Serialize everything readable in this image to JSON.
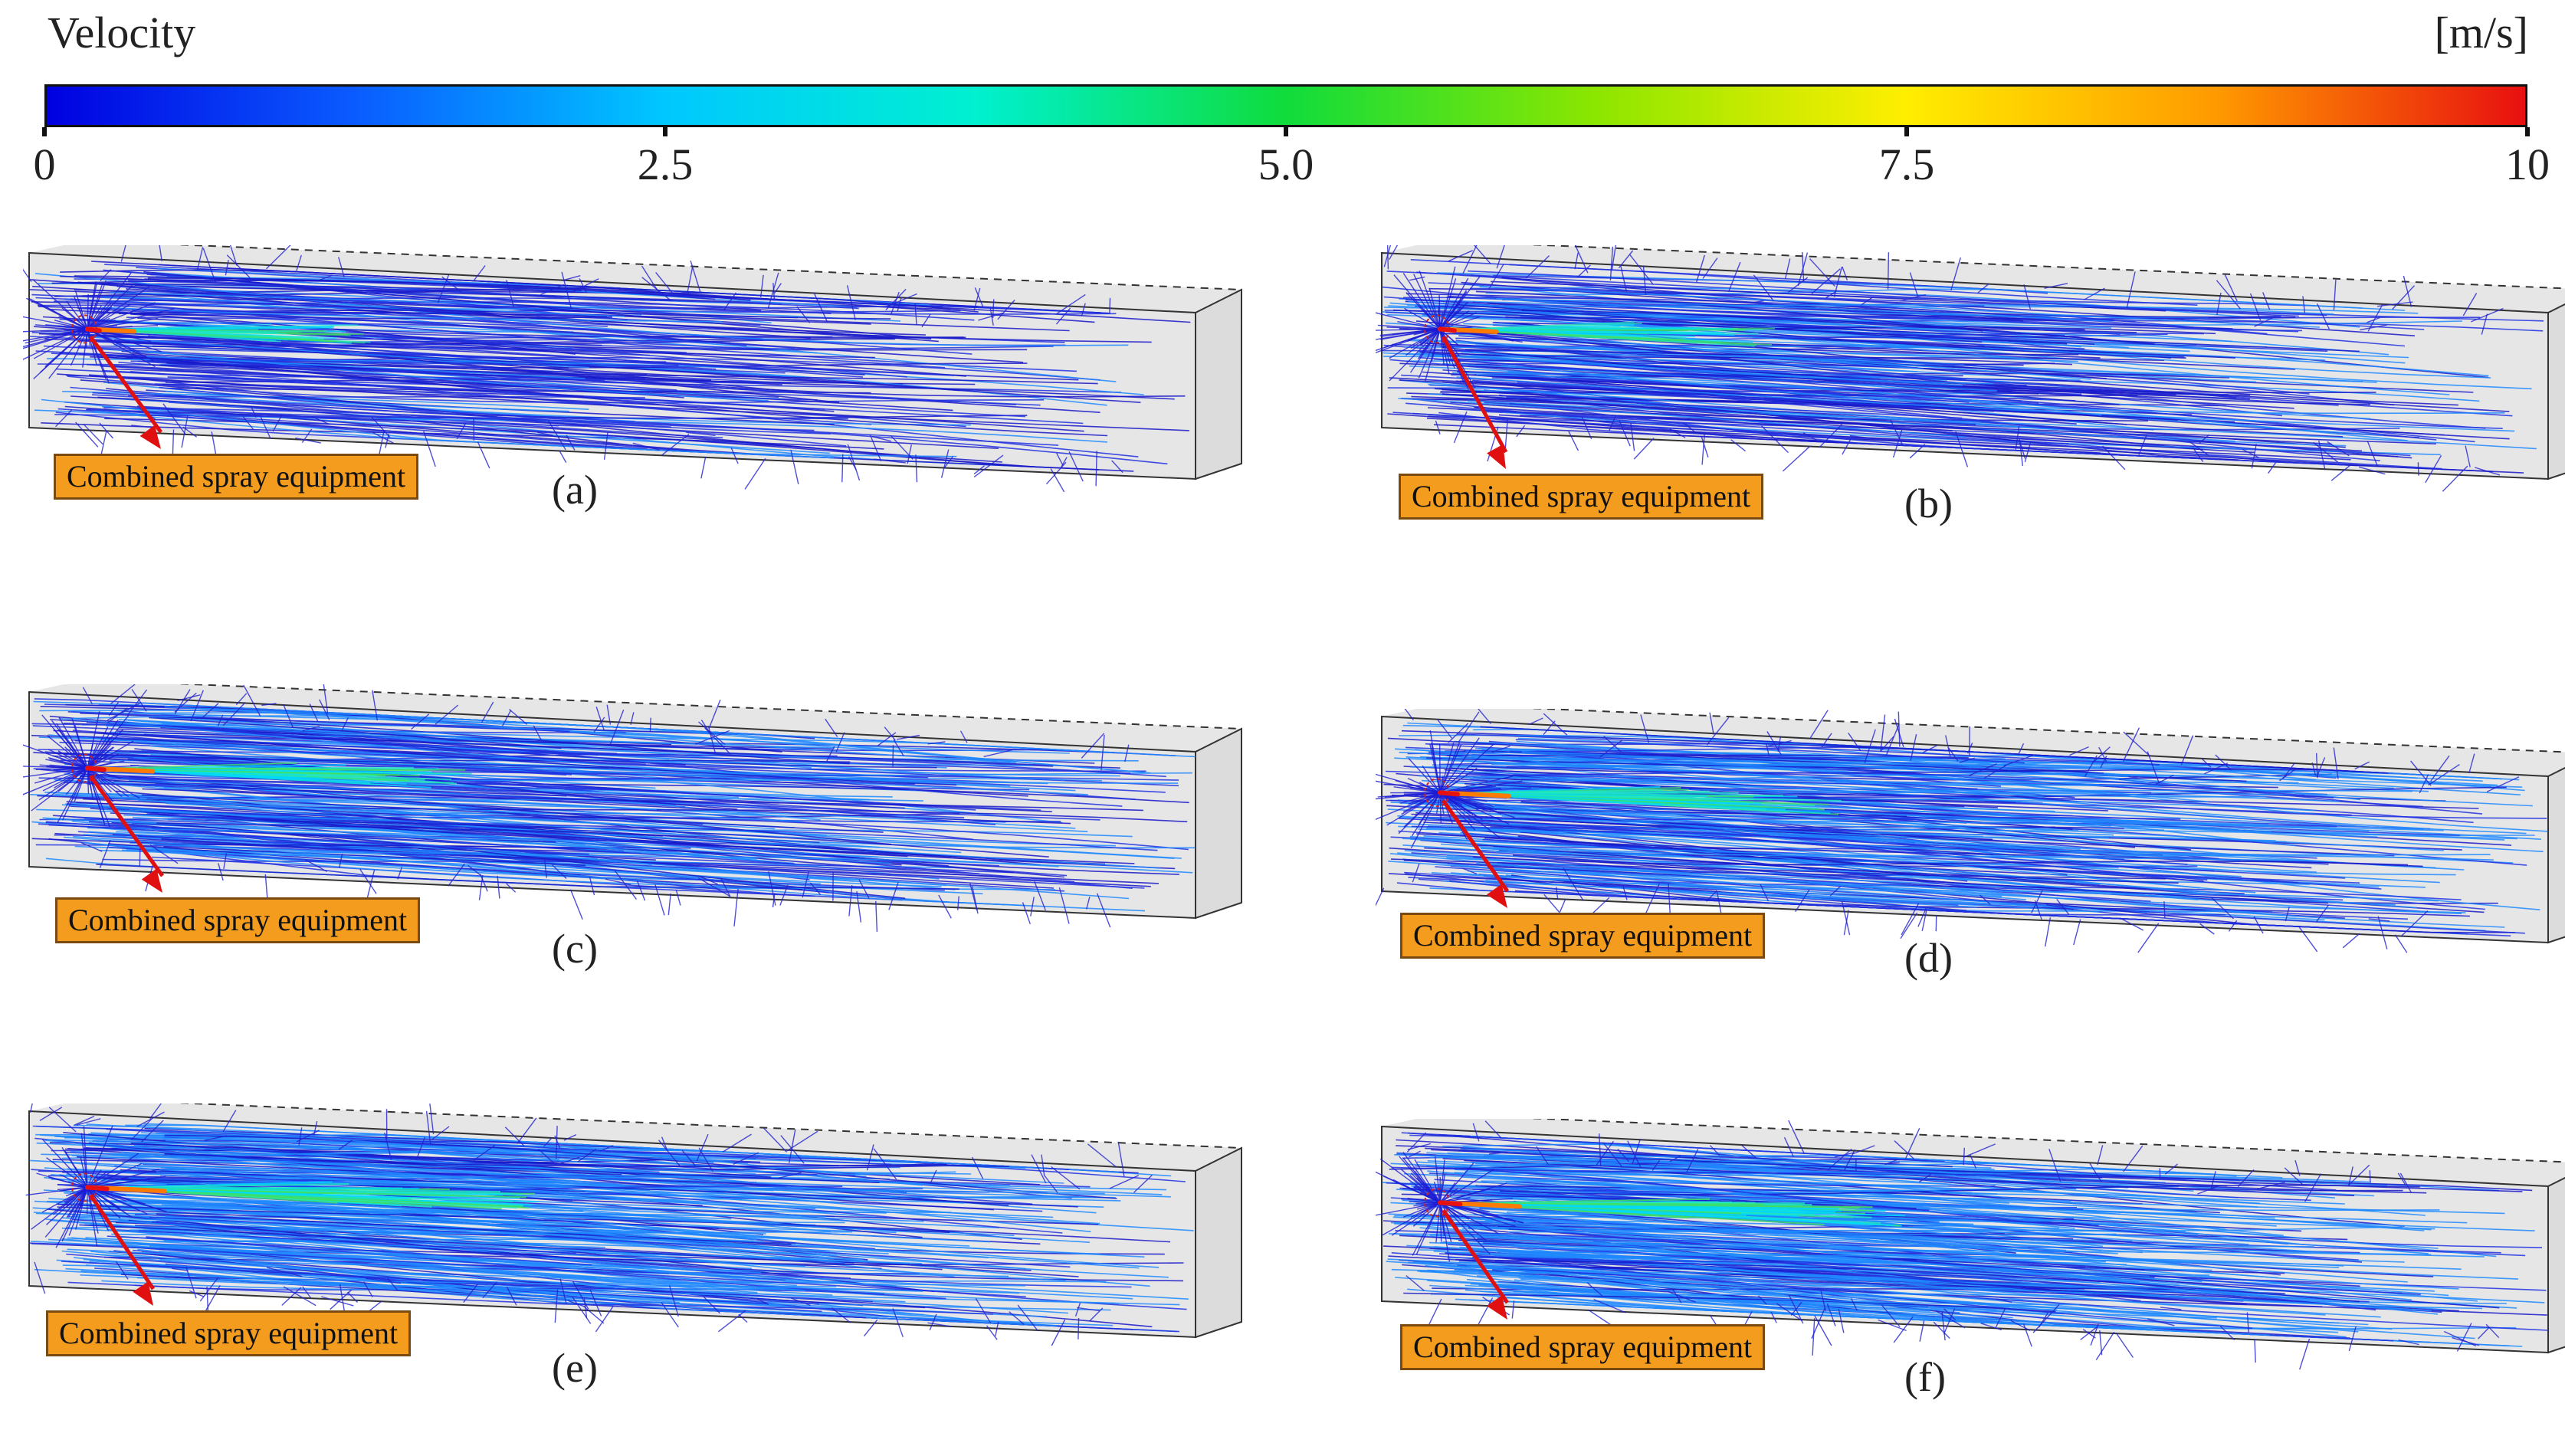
{
  "legend": {
    "title": "Velocity",
    "unit": "[m/s]",
    "ticks": [
      "0",
      "2.5",
      "5.0",
      "7.5",
      "10"
    ],
    "tick_values": [
      0,
      2.5,
      5.0,
      7.5,
      10
    ],
    "range": [
      0,
      10
    ],
    "gradient_colors": [
      "#0000e0",
      "#0a5cff",
      "#00c8ff",
      "#00f0d0",
      "#10dc3c",
      "#8ce600",
      "#ffee00",
      "#ff9a00",
      "#e81010"
    ]
  },
  "panels": [
    {
      "id": "a",
      "label": "(a)",
      "annotation": "Combined spray equipment",
      "intensity": 0.25
    },
    {
      "id": "b",
      "label": "(b)",
      "annotation": "Combined spray equipment",
      "intensity": 0.45
    },
    {
      "id": "c",
      "label": "(c)",
      "annotation": "Combined spray equipment",
      "intensity": 0.65
    },
    {
      "id": "d",
      "label": "(d)",
      "annotation": "Combined spray equipment",
      "intensity": 0.72
    },
    {
      "id": "e",
      "label": "(e)",
      "annotation": "Combined spray equipment",
      "intensity": 0.9
    },
    {
      "id": "f",
      "label": "(f)",
      "annotation": "Combined spray equipment",
      "intensity": 0.95
    }
  ],
  "colors": {
    "box_fill": "#e6e6e6",
    "box_edge": "#333333",
    "arrow": "#e01010",
    "streamline_slow": "#1a1ad8",
    "annotation_bg": "#f39c1e"
  }
}
